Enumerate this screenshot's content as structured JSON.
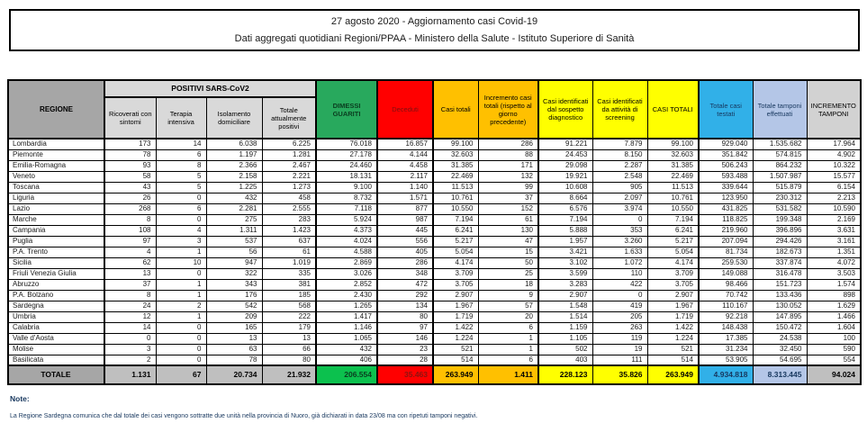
{
  "title": {
    "line1": "27 agosto 2020 - Aggiornamento casi Covid-19",
    "line2": "Dati aggregati quotidiani Regioni/PPAA - Ministero della Salute - Istituto Superiore di Sanità"
  },
  "table": {
    "group_header": "POSITIVI SARS-CoV2",
    "headers": {
      "regione": "REGIONE",
      "ricoverati": "Ricoverati con sintomi",
      "terapia": "Terapia intensiva",
      "isolamento": "Isolamento domiciliare",
      "totale_positivi": "Totale attualmente positivi",
      "dimessi": "DIMESSI GUARITI",
      "deceduti": "Deceduti",
      "casi_totali": "Casi totali",
      "incremento_casi": "Incremento casi totali (rispetto al giorno precedente)",
      "sospetto": "Casi identificati dal sospetto diagnostico",
      "screening": "Casi identificati da attività di screening",
      "casi_totali_2": "CASI TOTALI",
      "testati": "Totale casi testati",
      "tamponi": "Totale tamponi effettuati",
      "incremento_tamponi": "INCREMENTO TAMPONI"
    },
    "column_keys": [
      "regione",
      "ricoverati",
      "terapia",
      "isolamento",
      "totale_positivi",
      "dimessi",
      "deceduti",
      "casi_totali",
      "incremento_casi",
      "sospetto",
      "screening",
      "casi_totali_2",
      "testati",
      "tamponi",
      "incremento_tamponi"
    ],
    "rows": [
      [
        "Lombardia",
        "173",
        "14",
        "6.038",
        "6.225",
        "76.018",
        "16.857",
        "99.100",
        "286",
        "91.221",
        "7.879",
        "99.100",
        "929.040",
        "1.535.682",
        "17.964"
      ],
      [
        "Piemonte",
        "78",
        "6",
        "1.197",
        "1.281",
        "27.178",
        "4.144",
        "32.603",
        "88",
        "24.453",
        "8.150",
        "32.603",
        "351.842",
        "574.815",
        "4.902"
      ],
      [
        "Emilia-Romagna",
        "93",
        "8",
        "2.366",
        "2.467",
        "24.460",
        "4.458",
        "31.385",
        "171",
        "29.098",
        "2.287",
        "31.385",
        "506.243",
        "864.232",
        "10.322"
      ],
      [
        "Veneto",
        "58",
        "5",
        "2.158",
        "2.221",
        "18.131",
        "2.117",
        "22.469",
        "132",
        "19.921",
        "2.548",
        "22.469",
        "593.488",
        "1.507.987",
        "15.577"
      ],
      [
        "Toscana",
        "43",
        "5",
        "1.225",
        "1.273",
        "9.100",
        "1.140",
        "11.513",
        "99",
        "10.608",
        "905",
        "11.513",
        "339.644",
        "515.879",
        "6.154"
      ],
      [
        "Liguria",
        "26",
        "0",
        "432",
        "458",
        "8.732",
        "1.571",
        "10.761",
        "37",
        "8.664",
        "2.097",
        "10.761",
        "123.950",
        "230.312",
        "2.213"
      ],
      [
        "Lazio",
        "268",
        "6",
        "2.281",
        "2.555",
        "7.118",
        "877",
        "10.550",
        "152",
        "6.576",
        "3.974",
        "10.550",
        "431.825",
        "531.582",
        "10.590"
      ],
      [
        "Marche",
        "8",
        "0",
        "275",
        "283",
        "5.924",
        "987",
        "7.194",
        "61",
        "7.194",
        "0",
        "7.194",
        "118.825",
        "199.348",
        "2.169"
      ],
      [
        "Campania",
        "108",
        "4",
        "1.311",
        "1.423",
        "4.373",
        "445",
        "6.241",
        "130",
        "5.888",
        "353",
        "6.241",
        "219.960",
        "396.896",
        "3.631"
      ],
      [
        "Puglia",
        "97",
        "3",
        "537",
        "637",
        "4.024",
        "556",
        "5.217",
        "47",
        "1.957",
        "3.260",
        "5.217",
        "207.094",
        "294.426",
        "3.161"
      ],
      [
        "P.A. Trento",
        "4",
        "1",
        "56",
        "61",
        "4.588",
        "405",
        "5.054",
        "15",
        "3.421",
        "1.633",
        "5.054",
        "81.734",
        "182.673",
        "1.351"
      ],
      [
        "Sicilia",
        "62",
        "10",
        "947",
        "1.019",
        "2.869",
        "286",
        "4.174",
        "50",
        "3.102",
        "1.072",
        "4.174",
        "259.530",
        "337.874",
        "4.072"
      ],
      [
        "Friuli Venezia Giulia",
        "13",
        "0",
        "322",
        "335",
        "3.026",
        "348",
        "3.709",
        "25",
        "3.599",
        "110",
        "3.709",
        "149.088",
        "316.478",
        "3.503"
      ],
      [
        "Abruzzo",
        "37",
        "1",
        "343",
        "381",
        "2.852",
        "472",
        "3.705",
        "18",
        "3.283",
        "422",
        "3.705",
        "98.466",
        "151.723",
        "1.574"
      ],
      [
        "P.A. Bolzano",
        "8",
        "1",
        "176",
        "185",
        "2.430",
        "292",
        "2.907",
        "9",
        "2.907",
        "0",
        "2.907",
        "70.742",
        "133.436",
        "898"
      ],
      [
        "Sardegna",
        "24",
        "2",
        "542",
        "568",
        "1.265",
        "134",
        "1.967",
        "57",
        "1.548",
        "419",
        "1.967",
        "110.167",
        "130.052",
        "1.629"
      ],
      [
        "Umbria",
        "12",
        "1",
        "209",
        "222",
        "1.417",
        "80",
        "1.719",
        "20",
        "1.514",
        "205",
        "1.719",
        "92.218",
        "147.895",
        "1.466"
      ],
      [
        "Calabria",
        "14",
        "0",
        "165",
        "179",
        "1.146",
        "97",
        "1.422",
        "6",
        "1.159",
        "263",
        "1.422",
        "148.438",
        "150.472",
        "1.604"
      ],
      [
        "Valle d'Aosta",
        "0",
        "0",
        "13",
        "13",
        "1.065",
        "146",
        "1.224",
        "1",
        "1.105",
        "119",
        "1.224",
        "17.385",
        "24.538",
        "100"
      ],
      [
        "Molise",
        "3",
        "0",
        "63",
        "66",
        "432",
        "23",
        "521",
        "1",
        "502",
        "19",
        "521",
        "31.234",
        "32.450",
        "590"
      ],
      [
        "Basilicata",
        "2",
        "0",
        "78",
        "80",
        "406",
        "28",
        "514",
        "6",
        "403",
        "111",
        "514",
        "53.905",
        "54.695",
        "554"
      ]
    ],
    "total_row": [
      "TOTALE",
      "1.131",
      "67",
      "20.734",
      "21.932",
      "206.554",
      "35.463",
      "263.949",
      "1.411",
      "228.123",
      "35.826",
      "263.949",
      "4.934.818",
      "8.313.445",
      "94.024"
    ]
  },
  "notes": {
    "label": "Note:",
    "text": "La Regione Sardegna comunica che dal totale dei casi vengono sottratte due unità nella provincia di Nuoro, già dichiarati in data 23/08 ma con ripetuti tamponi negativi."
  },
  "colors": {
    "header_gray_dark": "#a6a6a6",
    "header_gray_light": "#d9d9d9",
    "green": "#28a95d",
    "green_total": "#0cc14e",
    "red": "#ff0000",
    "orange": "#ffc000",
    "yellow": "#ffff00",
    "cyan": "#31b0e8",
    "periwinkle": "#b4c6e7",
    "total_gray": "#bfbfbf",
    "note_navy": "#17375e"
  }
}
